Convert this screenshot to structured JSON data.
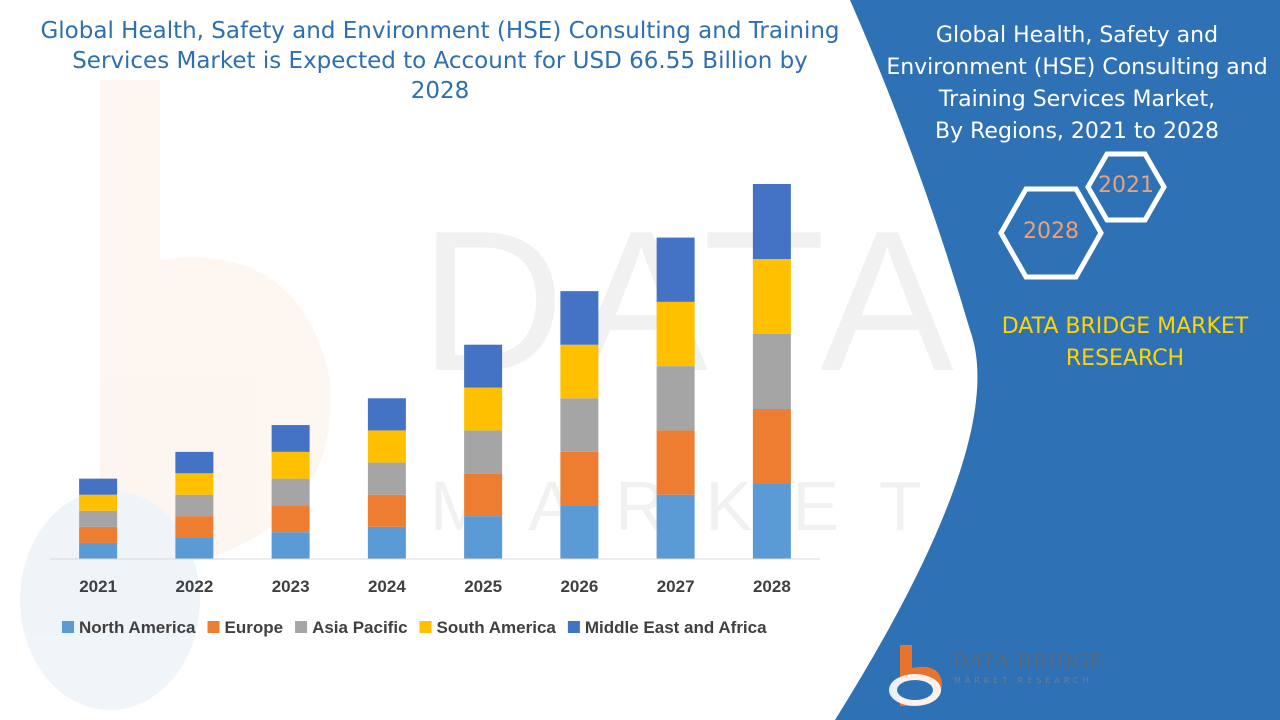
{
  "header": {
    "title": "Global Health, Safety and Environment (HSE) Consulting and Training Services Market is Expected to Account for USD 66.55 Billion by 2028"
  },
  "side_panel": {
    "title_lines": [
      "Global Health, Safety and",
      "Environment (HSE) Consulting and",
      "Training Services Market,",
      "By Regions, 2021 to 2028"
    ],
    "hex_start_year": "2021",
    "hex_end_year": "2028",
    "brand_lines": [
      "DATA BRIDGE MARKET",
      "RESEARCH"
    ],
    "panel_color": "#2f71b5"
  },
  "logo": {
    "name": "DATA BRIDGE",
    "tagline": "MARKET RESEARCH"
  },
  "chart_data": {
    "type": "bar",
    "stacked": true,
    "categories": [
      "2021",
      "2022",
      "2023",
      "2024",
      "2025",
      "2026",
      "2027",
      "2028"
    ],
    "series": [
      {
        "name": "North America",
        "color": "#5b9bd5",
        "values": [
          15,
          20,
          25,
          30,
          40,
          50,
          60,
          70
        ]
      },
      {
        "name": "Europe",
        "color": "#ed7d31",
        "values": [
          15,
          20,
          25,
          30,
          40,
          50,
          60,
          70
        ]
      },
      {
        "name": "Asia Pacific",
        "color": "#a5a5a5",
        "values": [
          15,
          20,
          25,
          30,
          40,
          50,
          60,
          70
        ]
      },
      {
        "name": "South America",
        "color": "#ffc000",
        "values": [
          15,
          20,
          25,
          30,
          40,
          50,
          60,
          70
        ]
      },
      {
        "name": "Middle East and Africa",
        "color": "#4472c4",
        "values": [
          15,
          20,
          25,
          30,
          40,
          50,
          60,
          70
        ]
      }
    ],
    "ylim": [
      0,
      350
    ],
    "grid": false,
    "legend_position": "bottom"
  }
}
